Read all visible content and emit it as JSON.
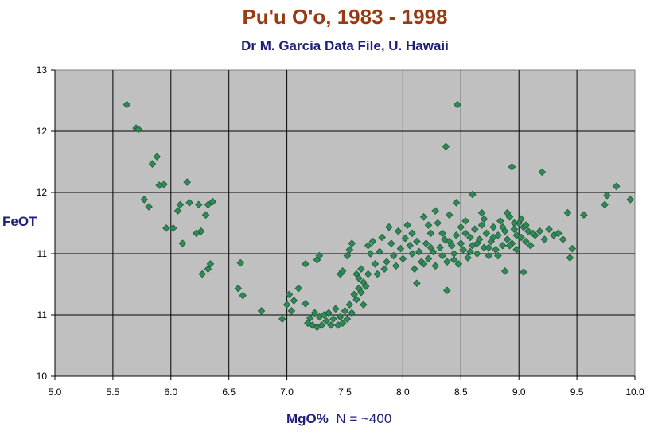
{
  "chart_data": {
    "type": "scatter",
    "title": "Pu'u O'o, 1983 - 1998",
    "subtitle": "Dr M. Garcia Data File, U. Hawaii",
    "ylabel": "FeOT",
    "xlabel": "MgO%",
    "xlabel_note": "N = ~400",
    "xlim": [
      5.0,
      10.0
    ],
    "ylim": [
      10,
      13
    ],
    "x_ticks": [
      "5.0",
      "5.5",
      "6.0",
      "6.5",
      "7.0",
      "7.5",
      "8.0",
      "8.5",
      "9.0",
      "9.5",
      "10.0"
    ],
    "y_ticks": [
      "10",
      "11",
      "11",
      "12",
      "12",
      "13"
    ],
    "grid": true,
    "plot_background": "#c0c0c0",
    "marker_color": "#2e8b57",
    "series": [
      {
        "points": [
          [
            5.62,
            12.66
          ],
          [
            5.7,
            12.43
          ],
          [
            5.72,
            12.42
          ],
          [
            5.84,
            12.08
          ],
          [
            5.88,
            12.15
          ],
          [
            5.9,
            11.87
          ],
          [
            5.94,
            11.88
          ],
          [
            5.77,
            11.73
          ],
          [
            5.81,
            11.66
          ],
          [
            5.96,
            11.45
          ],
          [
            6.02,
            11.45
          ],
          [
            6.06,
            11.62
          ],
          [
            6.08,
            11.68
          ],
          [
            6.1,
            11.3
          ],
          [
            6.14,
            11.9
          ],
          [
            6.16,
            11.7
          ],
          [
            6.22,
            11.4
          ],
          [
            6.26,
            11.42
          ],
          [
            6.24,
            11.68
          ],
          [
            6.3,
            11.58
          ],
          [
            6.32,
            11.68
          ],
          [
            6.36,
            11.71
          ],
          [
            6.27,
            11.0
          ],
          [
            6.32,
            11.05
          ],
          [
            6.34,
            11.1
          ],
          [
            6.58,
            10.86
          ],
          [
            6.62,
            10.79
          ],
          [
            6.6,
            11.11
          ],
          [
            6.78,
            10.64
          ],
          [
            6.96,
            10.56
          ],
          [
            7.0,
            10.7
          ],
          [
            7.02,
            10.8
          ],
          [
            7.04,
            10.64
          ],
          [
            7.06,
            10.74
          ],
          [
            7.1,
            10.86
          ],
          [
            7.16,
            11.1
          ],
          [
            7.16,
            10.71
          ],
          [
            7.18,
            10.52
          ],
          [
            7.2,
            10.57
          ],
          [
            7.22,
            10.5
          ],
          [
            7.24,
            10.62
          ],
          [
            7.26,
            10.48
          ],
          [
            7.28,
            10.58
          ],
          [
            7.3,
            10.5
          ],
          [
            7.32,
            10.6
          ],
          [
            7.34,
            10.54
          ],
          [
            7.36,
            10.62
          ],
          [
            7.38,
            10.5
          ],
          [
            7.4,
            10.56
          ],
          [
            7.42,
            10.66
          ],
          [
            7.44,
            10.5
          ],
          [
            7.46,
            10.58
          ],
          [
            7.48,
            10.52
          ],
          [
            7.5,
            10.64
          ],
          [
            7.52,
            10.56
          ],
          [
            7.54,
            10.7
          ],
          [
            7.56,
            10.62
          ],
          [
            7.58,
            10.8
          ],
          [
            7.6,
            10.75
          ],
          [
            7.62,
            10.86
          ],
          [
            7.64,
            10.82
          ],
          [
            7.66,
            10.92
          ],
          [
            7.68,
            10.88
          ],
          [
            7.26,
            11.14
          ],
          [
            7.28,
            11.18
          ],
          [
            7.46,
            11.0
          ],
          [
            7.48,
            11.03
          ],
          [
            7.52,
            11.18
          ],
          [
            7.54,
            11.24
          ],
          [
            7.56,
            11.3
          ],
          [
            7.6,
            11.0
          ],
          [
            7.62,
            10.96
          ],
          [
            7.64,
            11.05
          ],
          [
            7.66,
            10.7
          ],
          [
            7.7,
            11.28
          ],
          [
            7.72,
            11.2
          ],
          [
            7.74,
            11.32
          ],
          [
            7.76,
            11.1
          ],
          [
            7.78,
            11.0
          ],
          [
            7.8,
            11.22
          ],
          [
            7.82,
            11.36
          ],
          [
            7.84,
            11.05
          ],
          [
            7.86,
            11.12
          ],
          [
            7.88,
            11.46
          ],
          [
            7.9,
            11.3
          ],
          [
            7.92,
            11.18
          ],
          [
            7.94,
            11.08
          ],
          [
            7.96,
            11.42
          ],
          [
            7.98,
            11.25
          ],
          [
            8.0,
            11.15
          ],
          [
            8.02,
            11.35
          ],
          [
            8.04,
            11.48
          ],
          [
            8.06,
            11.28
          ],
          [
            8.08,
            11.2
          ],
          [
            8.1,
            11.05
          ],
          [
            8.12,
            11.32
          ],
          [
            8.14,
            11.22
          ],
          [
            8.16,
            11.12
          ],
          [
            8.18,
            11.56
          ],
          [
            8.2,
            11.3
          ],
          [
            8.22,
            11.15
          ],
          [
            8.24,
            11.4
          ],
          [
            8.26,
            11.22
          ],
          [
            8.28,
            11.08
          ],
          [
            8.3,
            11.5
          ],
          [
            8.32,
            11.26
          ],
          [
            8.34,
            11.18
          ],
          [
            8.36,
            11.34
          ],
          [
            8.38,
            11.12
          ],
          [
            8.4,
            11.58
          ],
          [
            8.42,
            11.28
          ],
          [
            8.44,
            11.2
          ],
          [
            8.46,
            11.38
          ],
          [
            8.48,
            11.1
          ],
          [
            8.5,
            11.3
          ],
          [
            8.52,
            11.24
          ],
          [
            8.54,
            11.52
          ],
          [
            8.56,
            11.16
          ],
          [
            8.58,
            11.36
          ],
          [
            8.6,
            11.28
          ],
          [
            8.62,
            11.44
          ],
          [
            8.64,
            11.2
          ],
          [
            8.66,
            11.34
          ],
          [
            8.68,
            11.6
          ],
          [
            8.7,
            11.26
          ],
          [
            8.72,
            11.4
          ],
          [
            8.74,
            11.18
          ],
          [
            8.76,
            11.32
          ],
          [
            8.78,
            11.46
          ],
          [
            8.8,
            11.24
          ],
          [
            8.82,
            11.38
          ],
          [
            8.84,
            11.52
          ],
          [
            8.86,
            11.28
          ],
          [
            8.88,
            11.42
          ],
          [
            8.9,
            11.34
          ],
          [
            8.92,
            11.56
          ],
          [
            8.94,
            11.3
          ],
          [
            8.96,
            11.44
          ],
          [
            8.98,
            11.38
          ],
          [
            9.0,
            11.5
          ],
          [
            9.02,
            11.36
          ],
          [
            9.04,
            11.46
          ],
          [
            9.06,
            11.32
          ],
          [
            9.08,
            11.42
          ],
          [
            9.1,
            11.28
          ],
          [
            9.14,
            11.38
          ],
          [
            9.18,
            11.42
          ],
          [
            9.22,
            11.34
          ],
          [
            9.26,
            11.44
          ],
          [
            9.3,
            11.38
          ],
          [
            9.34,
            11.4
          ],
          [
            9.38,
            11.34
          ],
          [
            9.42,
            11.6
          ],
          [
            9.44,
            11.16
          ],
          [
            9.46,
            11.25
          ],
          [
            9.56,
            11.58
          ],
          [
            9.74,
            11.68
          ],
          [
            9.76,
            11.77
          ],
          [
            9.84,
            11.86
          ],
          [
            9.96,
            11.73
          ],
          [
            8.37,
            12.25
          ],
          [
            8.47,
            12.66
          ],
          [
            8.38,
            10.84
          ],
          [
            8.12,
            10.91
          ],
          [
            8.94,
            12.05
          ],
          [
            9.2,
            12.0
          ],
          [
            9.04,
            11.02
          ],
          [
            8.88,
            11.03
          ],
          [
            7.7,
            11.0
          ],
          [
            8.6,
            11.78
          ],
          [
            8.9,
            11.6
          ],
          [
            8.28,
            11.62
          ],
          [
            8.46,
            11.7
          ],
          [
            8.7,
            11.54
          ],
          [
            9.12,
            11.4
          ],
          [
            8.24,
            11.26
          ],
          [
            8.34,
            11.4
          ],
          [
            8.5,
            11.46
          ],
          [
            8.64,
            11.3
          ],
          [
            8.78,
            11.36
          ],
          [
            8.92,
            11.28
          ],
          [
            9.06,
            11.48
          ],
          [
            8.18,
            11.1
          ],
          [
            8.44,
            11.14
          ],
          [
            8.58,
            11.22
          ],
          [
            8.74,
            11.26
          ],
          [
            8.86,
            11.46
          ],
          [
            8.98,
            11.24
          ],
          [
            9.02,
            11.54
          ],
          [
            8.4,
            11.32
          ],
          [
            8.54,
            11.4
          ],
          [
            8.68,
            11.48
          ],
          [
            8.82,
            11.18
          ],
          [
            8.96,
            11.5
          ],
          [
            8.08,
            11.4
          ],
          [
            8.22,
            11.48
          ]
        ]
      }
    ]
  }
}
